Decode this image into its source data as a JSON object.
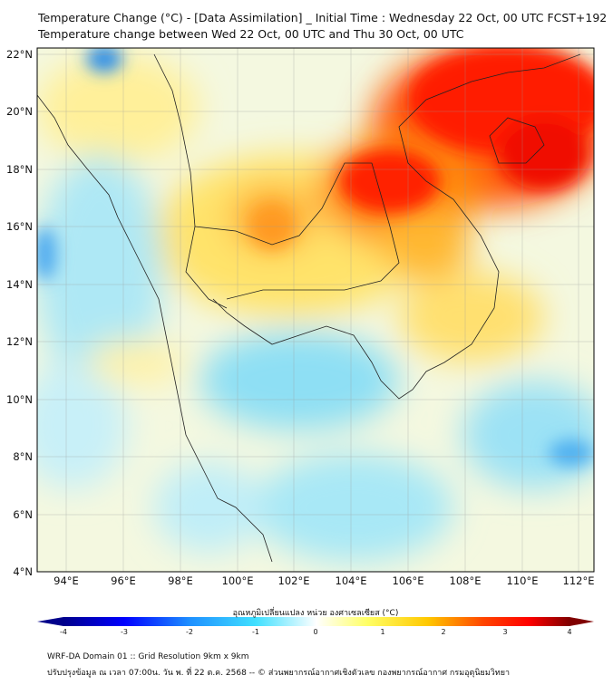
{
  "header": {
    "title": "Temperature Change (°C) - [Data Assimilation] _ Initial Time : Wednesday 22 Oct, 00 UTC FCST+192",
    "subtitle": "Temperature change between Wed 22 Oct, 00 UTC and Thu 30 Oct, 00 UTC"
  },
  "map": {
    "lat_labels": [
      "22°N",
      "20°N",
      "18°N",
      "16°N",
      "14°N",
      "12°N",
      "10°N",
      "8°N",
      "6°N",
      "4°N"
    ],
    "lon_labels": [
      "94°E",
      "96°E",
      "98°E",
      "100°E",
      "102°E",
      "104°E",
      "106°E",
      "108°E",
      "110°E",
      "112°E"
    ],
    "extent": {
      "lon": [
        93,
        112.5
      ],
      "lat": [
        4,
        22.2
      ]
    }
  },
  "colorbar": {
    "title": "อุณหภูมิเปลี่ยนแปลง หน่วย องศาเซลเซียส (°C)",
    "ticks": [
      "-4",
      "-3",
      "-2",
      "-1",
      "0",
      "1",
      "2",
      "3",
      "4"
    ],
    "range": [
      -4,
      4
    ],
    "colors": [
      "#00008b",
      "#0000ff",
      "#1e90ff",
      "#40e0ff",
      "#ffffff",
      "#ffff66",
      "#ffc800",
      "#ff4500",
      "#ff0000",
      "#800000"
    ]
  },
  "footer": {
    "line1": "WRF-DA Domain 01 :: Grid Resolution 9km x 9km",
    "line2": "ปรับปรุงข้อมูล ณ เวลา 07:00น. วัน พ. ที่ 22 ต.ค. 2568 -- © ส่วนพยากรณ์อากาศเชิงตัวเลข กองพยากรณ์อากาศ กรมอุตุนิยมวิทยา"
  }
}
